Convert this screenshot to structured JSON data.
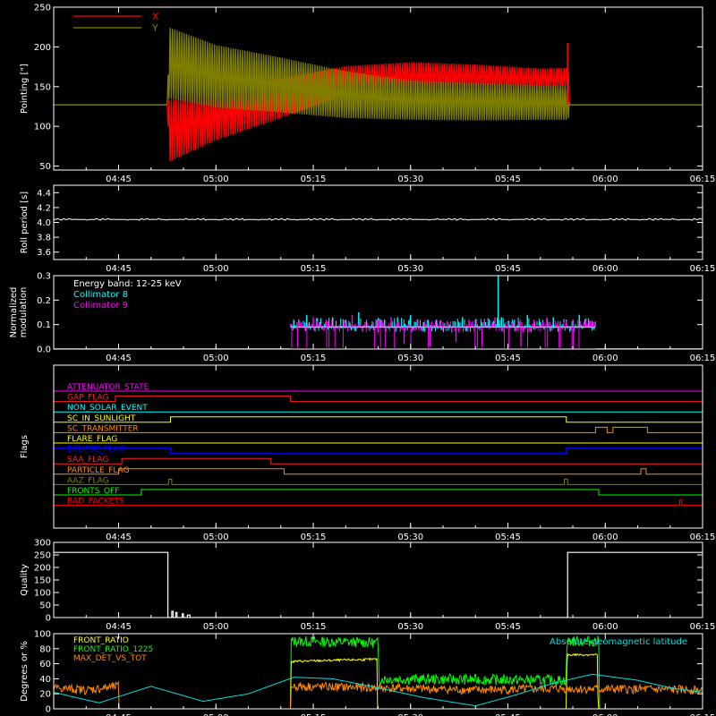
{
  "time_axis": {
    "range_minutes": [
      275,
      375
    ],
    "tick_minutes": [
      285,
      300,
      315,
      330,
      345,
      360,
      375
    ],
    "tick_labels": [
      "04:45",
      "05:00",
      "05:15",
      "05:30",
      "05:45",
      "06:00",
      "06:15"
    ]
  },
  "colors": {
    "pointing_x": "#ff0000",
    "pointing_y": "#808000",
    "roll": "#ffffff",
    "collimator_8": "#00ffff",
    "collimator_9": "#ff00ff",
    "front_ratio": "#ffff00",
    "front_ratio_1225": "#00ff00",
    "max_det_vs_tot": "#ff8c00",
    "geomag_lat": "#00e0e0"
  },
  "chart_data": [
    {
      "type": "line",
      "id": "pointing",
      "ylabel": "Pointing [\"]",
      "ylim": [
        45,
        250
      ],
      "yticks": [
        50,
        100,
        150,
        200,
        250
      ],
      "series": [
        {
          "name": "X",
          "x": [
            275,
            292.5,
            292.8,
            300,
            310,
            320,
            330,
            340,
            350,
            354.3,
            354.5,
            375
          ],
          "y_center": [
            127,
            127,
            95,
            112,
            135,
            158,
            163,
            163,
            160,
            162,
            127,
            127
          ],
          "y_amplitude": [
            0,
            0,
            40,
            30,
            25,
            18,
            18,
            15,
            13,
            12,
            0,
            0
          ]
        },
        {
          "name": "Y",
          "x": [
            275,
            292.5,
            292.8,
            300,
            310,
            320,
            330,
            340,
            350,
            354.3,
            354.5,
            375
          ],
          "y_center": [
            127,
            127,
            180,
            163,
            152,
            140,
            133,
            131,
            130,
            130,
            127,
            127
          ],
          "y_amplitude": [
            0,
            0,
            45,
            40,
            35,
            30,
            25,
            24,
            22,
            22,
            0,
            0
          ]
        }
      ]
    },
    {
      "type": "line",
      "id": "roll",
      "ylabel": "Roll period [s]",
      "ylim": [
        3.5,
        4.5
      ],
      "yticks": [
        3.6,
        3.8,
        4.0,
        4.2,
        4.4
      ],
      "series": [
        {
          "x": [
            275,
            375
          ],
          "y": [
            4.04,
            4.04
          ]
        }
      ]
    },
    {
      "type": "bar",
      "id": "modulation",
      "ylabel": "Normalized modulation",
      "ylim": [
        0,
        0.3
      ],
      "yticks": [
        0.0,
        0.1,
        0.2,
        0.3
      ],
      "legend": [
        "Energy band: 12-25 keV",
        "Collimator 8",
        "Collimator 9"
      ],
      "active_range": [
        311.5,
        358.5
      ],
      "baseline": 0.09,
      "series": [
        {
          "name": "Collimator 8",
          "x": [
            312,
            314,
            316,
            318,
            320,
            322,
            324,
            326,
            328,
            330,
            332,
            334,
            336,
            338,
            340,
            342,
            343.5,
            344,
            346,
            348,
            350,
            352,
            354,
            356,
            358
          ],
          "y": [
            0.12,
            0.14,
            0.11,
            0.13,
            0.12,
            0.15,
            0.1,
            0.12,
            0.13,
            0.14,
            0.11,
            0.12,
            0.1,
            0.13,
            0.12,
            0.11,
            0.3,
            0.13,
            0.12,
            0.14,
            0.11,
            0.13,
            0.12,
            0.14,
            0.11
          ]
        },
        {
          "name": "Collimator 9",
          "x": [
            312.5,
            315,
            317,
            319,
            321,
            323,
            325,
            327,
            329,
            331,
            333,
            335,
            337,
            339,
            341,
            343,
            345,
            347,
            349,
            351,
            353,
            355,
            357
          ],
          "y": [
            0.11,
            0.13,
            0.12,
            0.1,
            0.14,
            0.11,
            0.12,
            0.13,
            0.02,
            0.12,
            0.01,
            0.11,
            0.03,
            0.12,
            0.02,
            0.13,
            0.11,
            0.01,
            0.12,
            0.13,
            0.11,
            0.12,
            0.1
          ]
        }
      ]
    },
    {
      "type": "line",
      "id": "flags",
      "ylabel": "Flags",
      "series": [
        {
          "name": "ATTENUATOR_STATE",
          "color": "#ff00ff",
          "steps": [
            [
              275,
              0
            ],
            [
              375,
              0
            ]
          ]
        },
        {
          "name": "GAP_FLAG",
          "color": "#ff2020",
          "steps": [
            [
              275,
              0
            ],
            [
              284.5,
              1
            ],
            [
              311.5,
              0
            ],
            [
              375,
              0
            ]
          ]
        },
        {
          "name": "NON_SOLAR_EVENT",
          "color": "#00ffff",
          "steps": [
            [
              275,
              0
            ],
            [
              375,
              0
            ]
          ]
        },
        {
          "name": "SC_IN_SUNLIGHT",
          "color": "#ffff00",
          "steps": [
            [
              275,
              0
            ],
            [
              293,
              1
            ],
            [
              354,
              0
            ],
            [
              375,
              0
            ]
          ]
        },
        {
          "name": "SC_TRANSMITTER",
          "color": "#ff8c00",
          "steps": [
            [
              275,
              0
            ],
            [
              358.5,
              1
            ],
            [
              360.3,
              0
            ],
            [
              361.2,
              1
            ],
            [
              366.5,
              0
            ],
            [
              375,
              0
            ]
          ]
        },
        {
          "name": "FLARE_FLAG",
          "color": "#ffff00",
          "steps": [
            [
              275,
              0
            ],
            [
              375,
              0
            ]
          ]
        },
        {
          "name": "ECLIPSE_FLAG",
          "color": "#0000ff",
          "steps": [
            [
              275,
              1
            ],
            [
              293,
              0
            ],
            [
              354,
              1
            ],
            [
              375,
              1
            ]
          ]
        },
        {
          "name": "SAA_FLAG",
          "color": "#ff2020",
          "steps": [
            [
              275,
              0
            ],
            [
              285.5,
              1
            ],
            [
              308.5,
              0
            ],
            [
              375,
              0
            ]
          ]
        },
        {
          "name": "PARTICLE_FLAG",
          "color": "#ff8c00",
          "steps": [
            [
              275,
              0
            ],
            [
              285,
              1
            ],
            [
              310.5,
              0
            ],
            [
              365.5,
              1
            ],
            [
              366.3,
              0
            ],
            [
              375,
              0
            ]
          ]
        },
        {
          "name": "AAZ_FLAG",
          "color": "#808000",
          "steps": [
            [
              275,
              0
            ],
            [
              292.7,
              1
            ],
            [
              293.2,
              0
            ],
            [
              353.7,
              1
            ],
            [
              354.2,
              0
            ],
            [
              375,
              0
            ]
          ]
        },
        {
          "name": "FRONTS_OFF",
          "color": "#00ff00",
          "steps": [
            [
              275,
              0
            ],
            [
              288.5,
              1
            ],
            [
              359,
              0
            ],
            [
              375,
              0
            ]
          ]
        },
        {
          "name": "BAD_PACKETS",
          "color": "#ff0000",
          "steps": [
            [
              275,
              0
            ],
            [
              371.5,
              1
            ],
            [
              371.8,
              0
            ],
            [
              375,
              0
            ]
          ]
        }
      ]
    },
    {
      "type": "line",
      "id": "quality",
      "ylabel": "Quality",
      "ylim": [
        0,
        300
      ],
      "yticks": [
        0,
        50,
        100,
        150,
        200,
        250,
        300
      ],
      "series": [
        {
          "x": [
            275,
            292.5,
            292.6,
            293.2,
            293.4,
            293.8,
            294.0,
            294.8,
            295.0,
            295.6,
            296,
            354,
            354.2,
            375
          ],
          "y": [
            260,
            260,
            0,
            25,
            0,
            20,
            0,
            15,
            0,
            10,
            0,
            0,
            260,
            260
          ]
        }
      ]
    },
    {
      "type": "line",
      "id": "ratios",
      "ylabel": "Degrees or %",
      "ylim": [
        0,
        100
      ],
      "yticks": [
        0,
        20,
        40,
        60,
        80,
        100
      ],
      "legend_right": "Absolute geomagnetic latitude",
      "series": [
        {
          "name": "FRONT_RATIO",
          "x": [
            311.5,
            311.6,
            324.8,
            324.9,
            354.0,
            354.1,
            358.8,
            358.9
          ],
          "y": [
            0,
            63,
            66,
            0,
            0,
            72,
            72,
            0
          ]
        },
        {
          "name": "FRONT_RATIO_1225",
          "x": [
            275,
            311.5,
            311.6,
            325,
            325.1,
            354,
            354.1,
            359,
            359.1,
            375
          ],
          "y": [
            0,
            0,
            90,
            88,
            40,
            38,
            90,
            90,
            0,
            0
          ]
        },
        {
          "name": "MAX_DET_VS_TOT",
          "x": [
            275,
            280,
            285,
            285.1,
            311.5,
            311.6,
            325,
            340,
            354,
            358,
            365,
            375
          ],
          "y": [
            28,
            25,
            30,
            0,
            0,
            30,
            28,
            25,
            27,
            26,
            26,
            25
          ]
        },
        {
          "name": "Absolute geomagnetic latitude",
          "x": [
            275,
            282,
            290,
            298,
            305,
            312,
            318,
            325,
            332,
            340,
            346,
            352,
            358,
            365,
            370,
            375
          ],
          "y": [
            22,
            8,
            30,
            10,
            20,
            42,
            40,
            28,
            15,
            4,
            18,
            34,
            46,
            38,
            28,
            22
          ]
        }
      ]
    }
  ]
}
